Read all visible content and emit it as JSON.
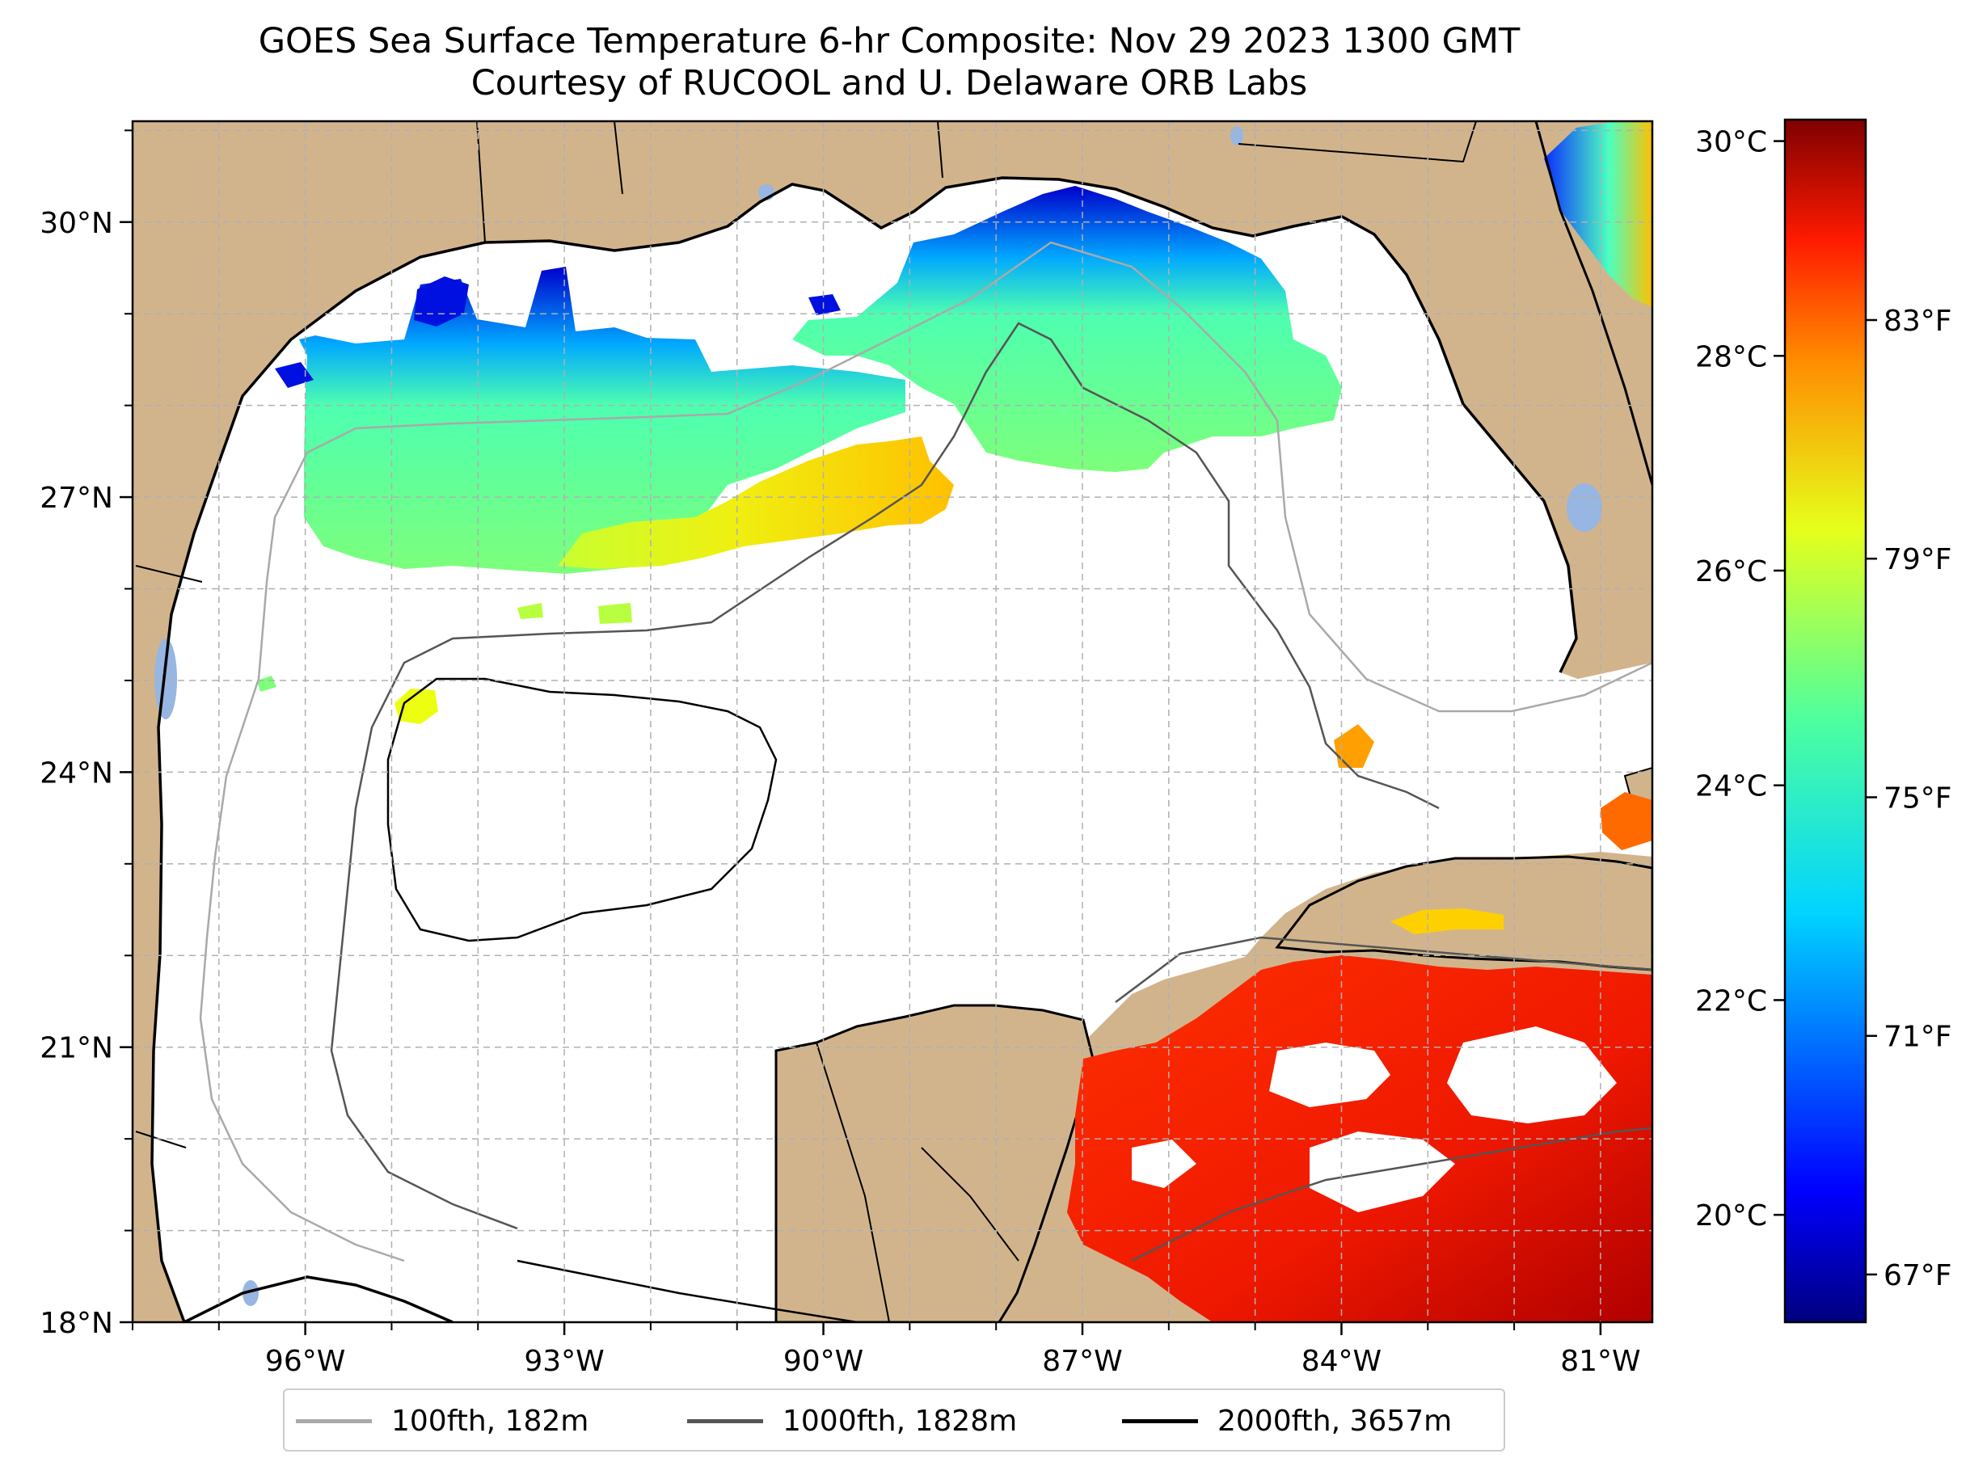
{
  "title": {
    "line1": "GOES Sea Surface Temperature 6-hr Composite: Nov 29 2023 1300 GMT",
    "line2": "Courtesy of RUCOOL and U. Delaware ORB Labs"
  },
  "map": {
    "lon_labels": [
      "96°W",
      "93°W",
      "90°W",
      "87°W",
      "84°W",
      "81°W"
    ],
    "lat_labels": [
      "30°N",
      "27°N",
      "24°N",
      "21°N",
      "18°N"
    ],
    "lon_values": [
      -96,
      -93,
      -90,
      -87,
      -84,
      -81
    ],
    "lat_values": [
      30,
      27,
      24,
      21,
      18
    ],
    "lon_range": [
      -98,
      -80.4
    ],
    "lat_range": [
      18,
      31.1
    ],
    "land_color": "#d2b48c",
    "water_color": "#ffffff",
    "lake_color": "#97b6e1"
  },
  "colorbar": {
    "celsius_labels": [
      "30°C",
      "28°C",
      "26°C",
      "24°C",
      "22°C",
      "20°C"
    ],
    "celsius_values": [
      30,
      28,
      26,
      24,
      22,
      20
    ],
    "fahrenheit_labels": [
      "83°F",
      "79°F",
      "75°F",
      "71°F",
      "67°F"
    ],
    "fahrenheit_values": [
      83,
      79,
      75,
      71,
      67
    ],
    "range_c": [
      19.0,
      30.2
    ],
    "colormap": "jet"
  },
  "legend": {
    "items": [
      {
        "label": "100fth, 182m",
        "color": "#a9a9a9"
      },
      {
        "label": "1000fth, 1828m",
        "color": "#555555"
      },
      {
        "label": "2000fth, 3657m",
        "color": "#000000"
      }
    ]
  }
}
